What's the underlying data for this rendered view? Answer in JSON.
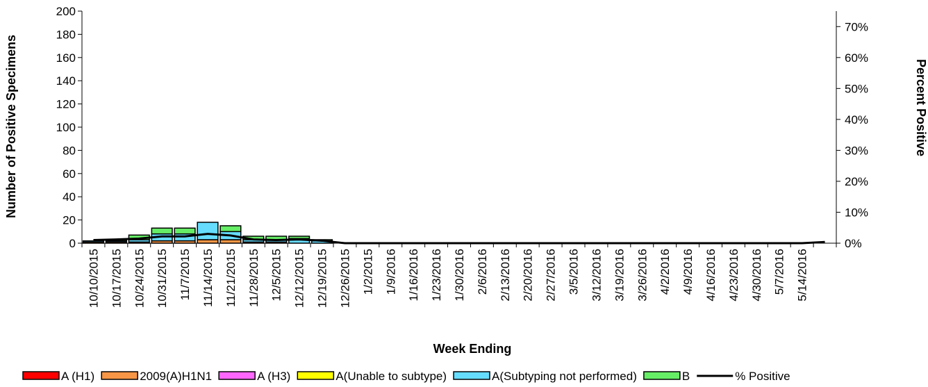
{
  "chart_data": {
    "type": "bar",
    "stacked": true,
    "secondary_line": true,
    "xlabel": "Week Ending",
    "ylabel": "Number of  Positive Specimens",
    "y2label": "Percent Positive",
    "ylim": [
      0,
      200
    ],
    "y_ticks": [
      0,
      20,
      40,
      60,
      80,
      100,
      120,
      140,
      160,
      180,
      200
    ],
    "y2lim": [
      0,
      0.75
    ],
    "y2_ticks": [
      0,
      0.1,
      0.2,
      0.3,
      0.4,
      0.5,
      0.6,
      0.7
    ],
    "y2_tick_labels": [
      "0%",
      "10%",
      "20%",
      "30%",
      "40%",
      "50%",
      "60%",
      "70%"
    ],
    "categories": [
      "10/10/2015",
      "10/17/2015",
      "10/24/2015",
      "10/31/2015",
      "11/7/2015",
      "11/14/2015",
      "11/21/2015",
      "11/28/2015",
      "12/5/2015",
      "12/12/2015",
      "12/19/2015",
      "12/26/2015",
      "1/2/2015",
      "1/9/2016",
      "1/16/2016",
      "1/23/2016",
      "1/30/2016",
      "2/6/2016",
      "2/13/2016",
      "2/20/2016",
      "2/27/2016",
      "3/5/2016",
      "3/12/2016",
      "3/19/2016",
      "3/26/2016",
      "4/2/2016",
      "4/9/2016",
      "4/16/2016",
      "4/23/2016",
      "4/30/2016",
      "5/7/2016",
      "5/14/2016",
      ""
    ],
    "series": [
      {
        "name": "A (H1)",
        "color": "#ff0000",
        "values": [
          0,
          0,
          0,
          0,
          0,
          0,
          0,
          0,
          0,
          0,
          0,
          0,
          0,
          0,
          0,
          0,
          0,
          0,
          0,
          0,
          0,
          0,
          0,
          0,
          0,
          0,
          0,
          0,
          0,
          0,
          0,
          0,
          0
        ]
      },
      {
        "name": "2009(A)H1N1",
        "color": "#f79646",
        "values": [
          1,
          1,
          1,
          2,
          2,
          3,
          3,
          1,
          1,
          0,
          0,
          0,
          0,
          0,
          0,
          0,
          0,
          0,
          0,
          0,
          0,
          0,
          0,
          0,
          0,
          0,
          0,
          0,
          0,
          0,
          0,
          0,
          0
        ]
      },
      {
        "name": "A (H3)",
        "color": "#ff66ff",
        "values": [
          0,
          0,
          0,
          0,
          0,
          0,
          0,
          0,
          0,
          0,
          0,
          0,
          0,
          0,
          0,
          0,
          0,
          0,
          0,
          0,
          0,
          0,
          0,
          0,
          0,
          0,
          0,
          0,
          0,
          0,
          0,
          0,
          0
        ]
      },
      {
        "name": "A(Unable to subtype)",
        "color": "#ffff00",
        "values": [
          0,
          0,
          0,
          0,
          0,
          0,
          0,
          0,
          0,
          0,
          0,
          0,
          0,
          0,
          0,
          0,
          0,
          0,
          0,
          0,
          0,
          0,
          0,
          0,
          0,
          0,
          0,
          0,
          0,
          0,
          0,
          0,
          0
        ]
      },
      {
        "name": "A(Subtyping not performed)",
        "color": "#66ddff",
        "values": [
          1,
          1,
          2,
          6,
          6,
          15,
          7,
          2,
          2,
          4,
          2,
          0,
          0,
          0,
          0,
          0,
          0,
          0,
          0,
          0,
          0,
          0,
          0,
          0,
          0,
          0,
          0,
          0,
          0,
          0,
          0,
          0,
          0
        ]
      },
      {
        "name": "B",
        "color": "#66ee66",
        "values": [
          0,
          1,
          4,
          5,
          5,
          0,
          5,
          3,
          3,
          2,
          1,
          0,
          0,
          0,
          0,
          0,
          0,
          0,
          0,
          0,
          0,
          0,
          0,
          0,
          0,
          0,
          0,
          0,
          0,
          0,
          0,
          0,
          0
        ]
      }
    ],
    "line_series": {
      "name": "% Positive",
      "color": "#000000",
      "values": [
        0.01,
        0.012,
        0.015,
        0.022,
        0.022,
        0.03,
        0.025,
        0.012,
        0.01,
        0.012,
        0.008,
        0,
        0,
        0,
        0,
        0,
        0,
        0,
        0,
        0,
        0,
        0,
        0,
        0,
        0,
        0,
        0,
        0,
        0,
        0,
        0,
        0,
        0.004
      ]
    },
    "legend": [
      "A (H1)",
      "2009(A)H1N1",
      "A (H3)",
      "A(Unable to subtype)",
      "A(Subtyping not performed)",
      "B",
      "% Positive"
    ],
    "legend_position": "bottom",
    "grid": false
  }
}
